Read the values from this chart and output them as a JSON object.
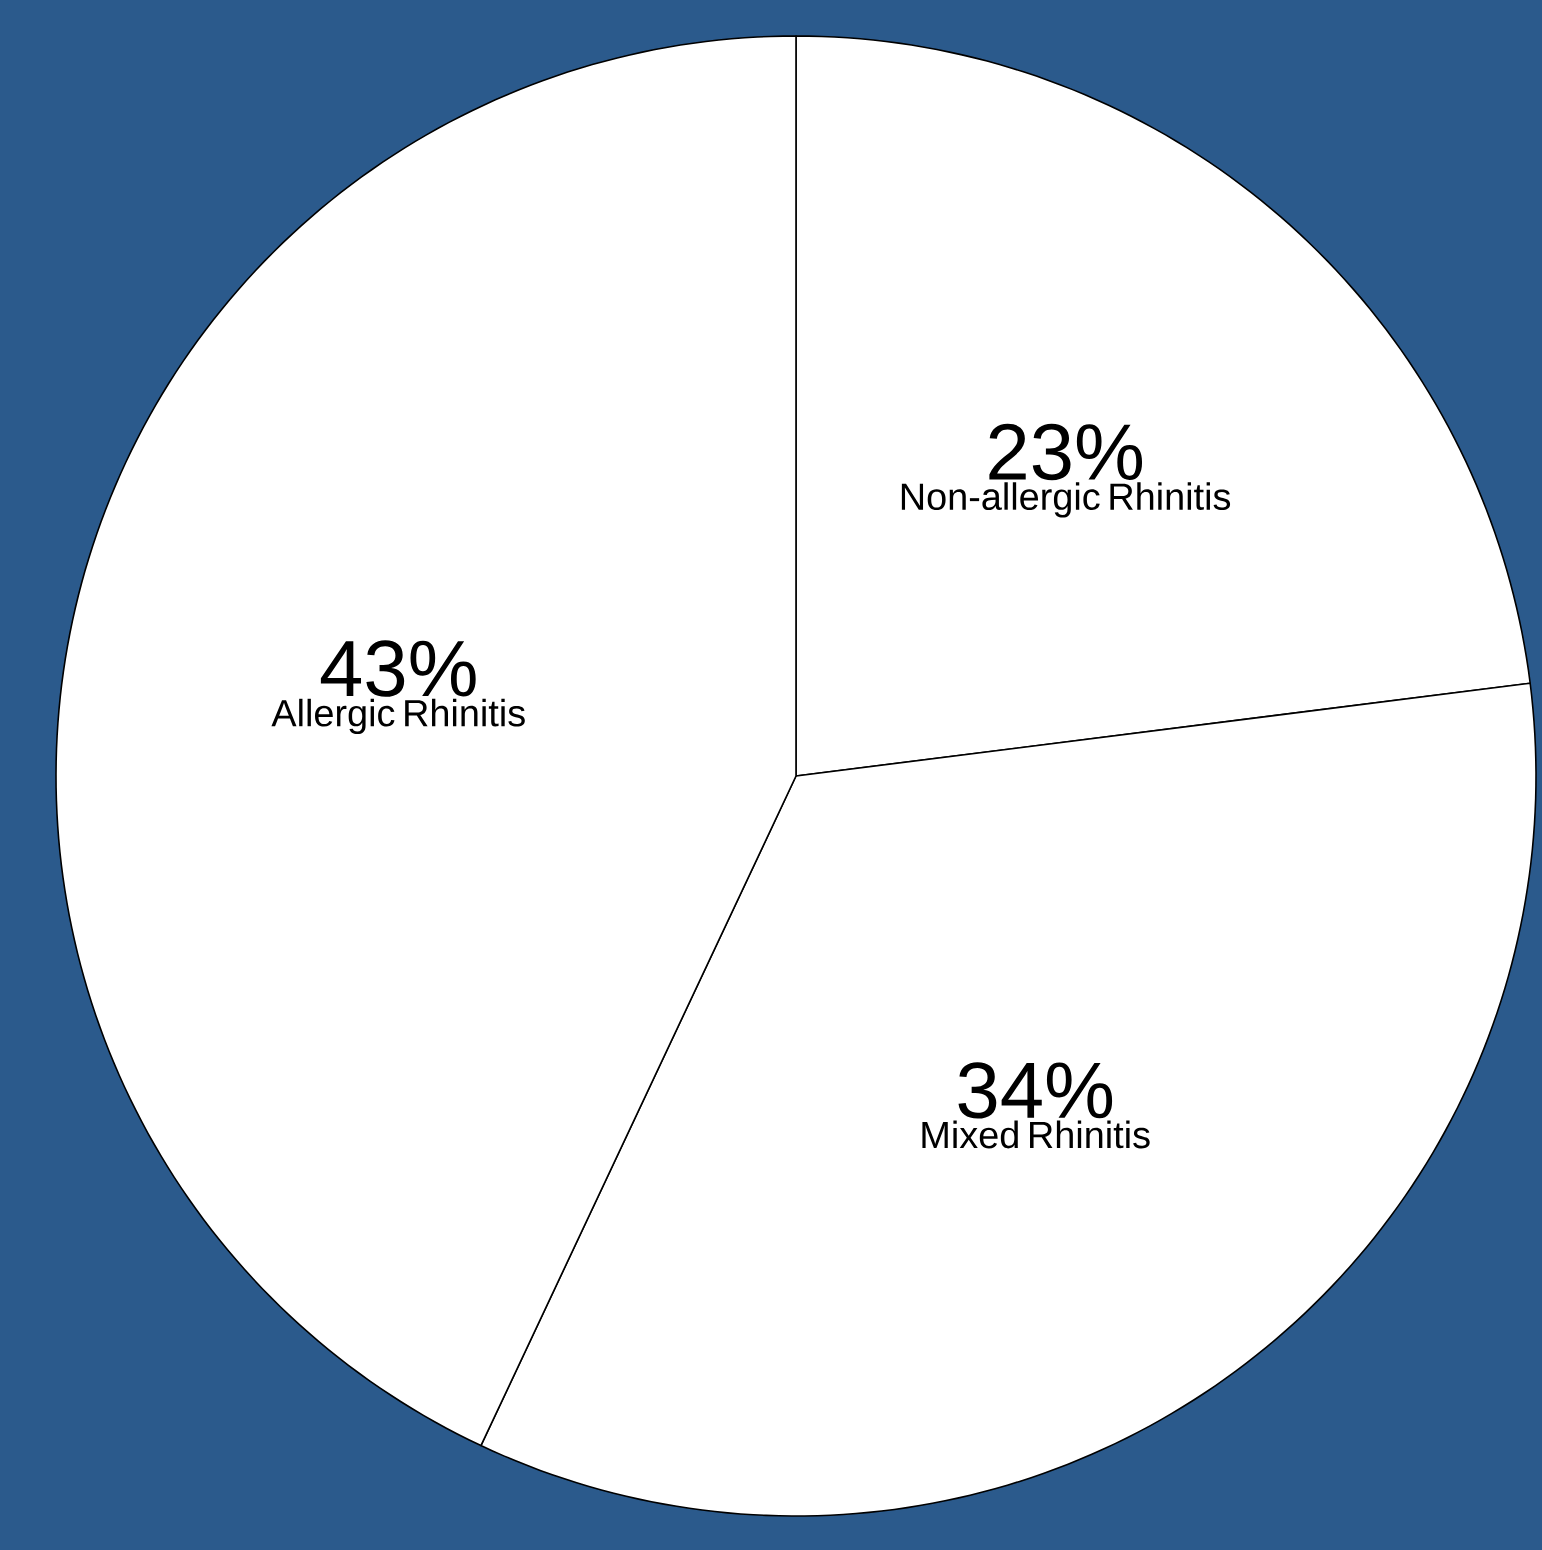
{
  "chart_data": {
    "type": "pie",
    "categories": [
      "Non-allergic Rhinitis",
      "Mixed Rhinitis",
      "Allergic Rhinitis"
    ],
    "values": [
      23,
      34,
      43
    ],
    "value_labels": [
      "23%",
      "34%",
      "43%"
    ],
    "colors": [
      "#ffffff",
      "#ffffff",
      "#ffffff"
    ]
  }
}
